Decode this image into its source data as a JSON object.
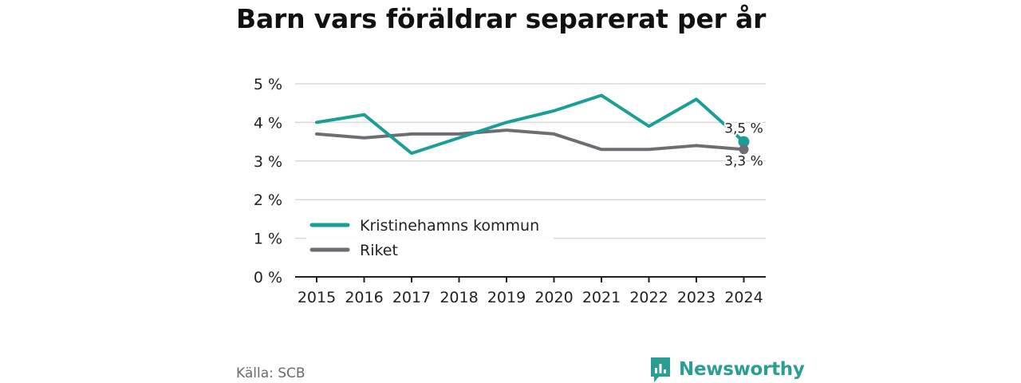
{
  "title": "Barn vars föräldrar separerat per år",
  "source": "Källa: SCB",
  "brand": {
    "name": "Newsworthy",
    "icon": "newsworthy-logo-icon"
  },
  "chart_data": {
    "type": "line",
    "title": "Barn vars föräldrar separerat per år",
    "x": [
      "2015",
      "2016",
      "2017",
      "2018",
      "2019",
      "2020",
      "2021",
      "2022",
      "2023",
      "2024"
    ],
    "ylim": [
      0,
      5
    ],
    "yticks": [
      "0 %",
      "1 %",
      "2 %",
      "3 %",
      "4 %",
      "5 %"
    ],
    "grid": true,
    "legend": "bottom-left",
    "series": [
      {
        "name": "Kristinehamns kommun",
        "color": "#1a9e96",
        "values": [
          4.0,
          4.2,
          3.2,
          3.6,
          4.0,
          4.3,
          4.7,
          3.9,
          4.6,
          3.5
        ],
        "end_label": "3,5 %"
      },
      {
        "name": "Riket",
        "color": "#6e6d73",
        "values": [
          3.7,
          3.6,
          3.7,
          3.7,
          3.8,
          3.7,
          3.3,
          3.3,
          3.4,
          3.3
        ],
        "end_label": "3,3 %"
      }
    ]
  }
}
